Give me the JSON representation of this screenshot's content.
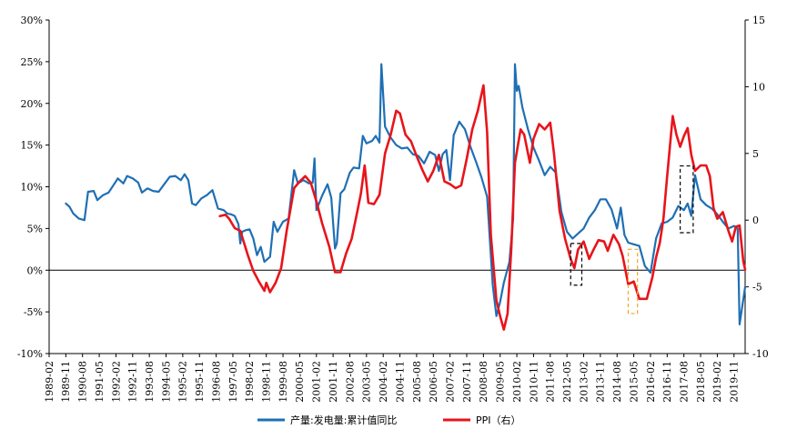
{
  "chart_data": {
    "type": "line",
    "title": "",
    "x_start": "1989-02",
    "x_end": "2020-05",
    "x_ticks": [
      "1989-02",
      "1989-11",
      "1990-08",
      "1991-05",
      "1992-02",
      "1992-11",
      "1993-08",
      "1994-05",
      "1995-02",
      "1995-11",
      "1996-08",
      "1997-05",
      "1998-02",
      "1998-11",
      "1999-08",
      "2000-05",
      "2001-02",
      "2001-11",
      "2002-08",
      "2003-05",
      "2004-02",
      "2004-11",
      "2005-08",
      "2006-05",
      "2007-02",
      "2007-11",
      "2008-08",
      "2009-05",
      "2010-02",
      "2010-11",
      "2011-08",
      "2012-05",
      "2013-02",
      "2013-11",
      "2014-08",
      "2015-05",
      "2016-02",
      "2016-11",
      "2017-08",
      "2018-05",
      "2019-02",
      "2019-11"
    ],
    "y_left": {
      "ticks": [
        "30%",
        "25%",
        "20%",
        "15%",
        "10%",
        "5%",
        "0%",
        "-5%",
        "-10%"
      ],
      "range": [
        -10,
        30
      ]
    },
    "y_right": {
      "ticks": [
        "15",
        "10",
        "5",
        "0",
        "-5",
        "-10"
      ],
      "range": [
        -10,
        15
      ]
    },
    "legend_position": "bottom-center",
    "grid": false,
    "series": [
      {
        "name": "产量:发电量:累计值同比",
        "axis": "left",
        "color": "#1f6fb4",
        "points": [
          [
            "1989-11",
            8.0
          ],
          [
            "1990-01",
            7.6
          ],
          [
            "1990-03",
            6.8
          ],
          [
            "1990-06",
            6.2
          ],
          [
            "1990-09",
            6.0
          ],
          [
            "1990-11",
            9.4
          ],
          [
            "1991-02",
            9.5
          ],
          [
            "1991-04",
            8.4
          ],
          [
            "1991-07",
            9.0
          ],
          [
            "1991-10",
            9.3
          ],
          [
            "1992-01",
            10.3
          ],
          [
            "1992-03",
            11.0
          ],
          [
            "1992-06",
            10.4
          ],
          [
            "1992-08",
            11.3
          ],
          [
            "1992-11",
            11.0
          ],
          [
            "1993-02",
            10.5
          ],
          [
            "1993-04",
            9.3
          ],
          [
            "1993-07",
            9.8
          ],
          [
            "1993-10",
            9.5
          ],
          [
            "1994-01",
            9.4
          ],
          [
            "1994-04",
            10.3
          ],
          [
            "1994-07",
            11.2
          ],
          [
            "1994-10",
            11.3
          ],
          [
            "1995-01",
            10.8
          ],
          [
            "1995-03",
            11.5
          ],
          [
            "1995-05",
            10.8
          ],
          [
            "1995-07",
            8.0
          ],
          [
            "1995-09",
            7.8
          ],
          [
            "1995-12",
            8.6
          ],
          [
            "1996-03",
            9.0
          ],
          [
            "1996-06",
            9.6
          ],
          [
            "1996-09",
            7.4
          ],
          [
            "1996-12",
            7.2
          ],
          [
            "1997-02",
            6.8
          ],
          [
            "1997-04",
            6.7
          ],
          [
            "1997-06",
            6.5
          ],
          [
            "1997-08",
            5.5
          ],
          [
            "1997-09",
            3.2
          ],
          [
            "1997-10",
            4.6
          ],
          [
            "1997-12",
            4.8
          ],
          [
            "1998-02",
            4.9
          ],
          [
            "1998-04",
            3.8
          ],
          [
            "1998-06",
            1.8
          ],
          [
            "1998-08",
            2.8
          ],
          [
            "1998-10",
            1.0
          ],
          [
            "1999-01",
            1.6
          ],
          [
            "1999-03",
            5.8
          ],
          [
            "1999-05",
            4.6
          ],
          [
            "1999-08",
            5.8
          ],
          [
            "1999-11",
            6.2
          ],
          [
            "2000-02",
            12.0
          ],
          [
            "2000-04",
            10.4
          ],
          [
            "2000-07",
            10.8
          ],
          [
            "2000-10",
            10.4
          ],
          [
            "2000-12",
            10.5
          ],
          [
            "2001-01",
            13.4
          ],
          [
            "2001-02",
            7.2
          ],
          [
            "2001-05",
            8.9
          ],
          [
            "2001-08",
            10.3
          ],
          [
            "2001-10",
            8.7
          ],
          [
            "2001-12",
            2.6
          ],
          [
            "2002-01",
            3.2
          ],
          [
            "2002-03",
            9.2
          ],
          [
            "2002-05",
            9.7
          ],
          [
            "2002-08",
            11.7
          ],
          [
            "2002-10",
            12.3
          ],
          [
            "2003-01",
            12.2
          ],
          [
            "2003-03",
            16.1
          ],
          [
            "2003-05",
            15.2
          ],
          [
            "2003-08",
            15.5
          ],
          [
            "2003-10",
            16.1
          ],
          [
            "2003-12",
            15.3
          ],
          [
            "2004-01",
            24.7
          ],
          [
            "2004-03",
            17.2
          ],
          [
            "2004-06",
            15.9
          ],
          [
            "2004-09",
            15.0
          ],
          [
            "2004-12",
            14.6
          ],
          [
            "2005-03",
            14.7
          ],
          [
            "2005-06",
            13.9
          ],
          [
            "2005-09",
            13.7
          ],
          [
            "2005-12",
            12.8
          ],
          [
            "2006-03",
            14.2
          ],
          [
            "2006-06",
            13.8
          ],
          [
            "2006-08",
            11.9
          ],
          [
            "2006-10",
            13.9
          ],
          [
            "2006-12",
            14.4
          ],
          [
            "2007-02",
            10.8
          ],
          [
            "2007-04",
            16.2
          ],
          [
            "2007-07",
            17.8
          ],
          [
            "2007-10",
            16.9
          ],
          [
            "2008-01",
            14.8
          ],
          [
            "2008-04",
            13.0
          ],
          [
            "2008-07",
            11.1
          ],
          [
            "2008-10",
            8.8
          ],
          [
            "2009-01",
            -1.8
          ],
          [
            "2009-03",
            -5.5
          ],
          [
            "2009-05",
            -3.8
          ],
          [
            "2009-07",
            -1.5
          ],
          [
            "2009-10",
            1.0
          ],
          [
            "2009-12",
            6.2
          ],
          [
            "2010-01",
            24.7
          ],
          [
            "2010-02",
            21.5
          ],
          [
            "2010-03",
            22.1
          ],
          [
            "2010-05",
            19.5
          ],
          [
            "2010-08",
            16.9
          ],
          [
            "2010-11",
            14.7
          ],
          [
            "2011-02",
            13.1
          ],
          [
            "2011-05",
            11.4
          ],
          [
            "2011-08",
            12.4
          ],
          [
            "2011-11",
            11.7
          ],
          [
            "2012-02",
            7.0
          ],
          [
            "2012-05",
            4.6
          ],
          [
            "2012-08",
            3.8
          ],
          [
            "2012-11",
            4.4
          ],
          [
            "2013-02",
            5.0
          ],
          [
            "2013-05",
            6.3
          ],
          [
            "2013-08",
            7.2
          ],
          [
            "2013-11",
            8.5
          ],
          [
            "2014-02",
            8.5
          ],
          [
            "2014-05",
            7.3
          ],
          [
            "2014-08",
            5.0
          ],
          [
            "2014-10",
            7.5
          ],
          [
            "2014-12",
            4.2
          ],
          [
            "2015-02",
            3.3
          ],
          [
            "2015-05",
            3.1
          ],
          [
            "2015-08",
            2.9
          ],
          [
            "2015-11",
            0.5
          ],
          [
            "2016-02",
            -0.3
          ],
          [
            "2016-05",
            3.8
          ],
          [
            "2016-08",
            5.6
          ],
          [
            "2016-11",
            5.8
          ],
          [
            "2017-02",
            6.3
          ],
          [
            "2017-05",
            7.7
          ],
          [
            "2017-08",
            7.2
          ],
          [
            "2017-10",
            8.0
          ],
          [
            "2017-12",
            6.5
          ],
          [
            "2018-02",
            11.4
          ],
          [
            "2018-05",
            8.5
          ],
          [
            "2018-08",
            7.8
          ],
          [
            "2018-11",
            7.4
          ],
          [
            "2019-02",
            6.7
          ],
          [
            "2019-05",
            5.8
          ],
          [
            "2019-08",
            5.0
          ],
          [
            "2019-11",
            5.3
          ],
          [
            "2020-01",
            5.0
          ],
          [
            "2020-02",
            -6.5
          ],
          [
            "2020-05",
            -2.0
          ]
        ]
      },
      {
        "name": "PPI（右）",
        "axis": "right",
        "color": "#e8141b",
        "points": [
          [
            "1996-10",
            0.3
          ],
          [
            "1997-01",
            0.4
          ],
          [
            "1997-03",
            0.1
          ],
          [
            "1997-06",
            -0.6
          ],
          [
            "1997-09",
            -0.8
          ],
          [
            "1998-01",
            -2.6
          ],
          [
            "1998-04",
            -3.8
          ],
          [
            "1998-07",
            -4.6
          ],
          [
            "1998-10",
            -5.3
          ],
          [
            "1998-11",
            -4.7
          ],
          [
            "1999-01",
            -5.4
          ],
          [
            "1999-04",
            -4.7
          ],
          [
            "1999-07",
            -3.6
          ],
          [
            "1999-10",
            -0.8
          ],
          [
            "2000-02",
            2.4
          ],
          [
            "2000-05",
            2.9
          ],
          [
            "2000-08",
            3.3
          ],
          [
            "2000-11",
            2.8
          ],
          [
            "2001-02",
            1.4
          ],
          [
            "2001-05",
            -0.2
          ],
          [
            "2001-09",
            -2.0
          ],
          [
            "2001-12",
            -3.9
          ],
          [
            "2002-03",
            -3.9
          ],
          [
            "2002-06",
            -2.5
          ],
          [
            "2002-09",
            -1.4
          ],
          [
            "2002-12",
            0.6
          ],
          [
            "2003-02",
            2.0
          ],
          [
            "2003-04",
            4.1
          ],
          [
            "2003-06",
            1.3
          ],
          [
            "2003-09",
            1.2
          ],
          [
            "2003-12",
            1.9
          ],
          [
            "2004-03",
            5.0
          ],
          [
            "2004-06",
            6.4
          ],
          [
            "2004-09",
            8.2
          ],
          [
            "2004-11",
            8.0
          ],
          [
            "2005-02",
            6.4
          ],
          [
            "2005-05",
            5.9
          ],
          [
            "2005-08",
            4.8
          ],
          [
            "2005-11",
            3.8
          ],
          [
            "2006-02",
            2.9
          ],
          [
            "2006-05",
            3.7
          ],
          [
            "2006-08",
            4.9
          ],
          [
            "2006-11",
            2.9
          ],
          [
            "2007-02",
            2.7
          ],
          [
            "2007-05",
            2.4
          ],
          [
            "2007-08",
            2.6
          ],
          [
            "2007-11",
            4.6
          ],
          [
            "2008-02",
            6.8
          ],
          [
            "2008-05",
            8.2
          ],
          [
            "2008-08",
            10.1
          ],
          [
            "2008-10",
            6.6
          ],
          [
            "2008-12",
            -1.1
          ],
          [
            "2009-03",
            -6.0
          ],
          [
            "2009-05",
            -7.2
          ],
          [
            "2009-07",
            -8.2
          ],
          [
            "2009-09",
            -7.0
          ],
          [
            "2009-11",
            -2.1
          ],
          [
            "2010-01",
            4.3
          ],
          [
            "2010-04",
            6.8
          ],
          [
            "2010-06",
            6.4
          ],
          [
            "2010-09",
            4.3
          ],
          [
            "2010-11",
            6.1
          ],
          [
            "2011-02",
            7.2
          ],
          [
            "2011-05",
            6.8
          ],
          [
            "2011-08",
            7.3
          ],
          [
            "2011-10",
            5.0
          ],
          [
            "2012-01",
            0.7
          ],
          [
            "2012-04",
            -1.4
          ],
          [
            "2012-07",
            -2.9
          ],
          [
            "2012-09",
            -3.6
          ],
          [
            "2012-11",
            -2.2
          ],
          [
            "2013-02",
            -1.6
          ],
          [
            "2013-05",
            -2.9
          ],
          [
            "2013-07",
            -2.3
          ],
          [
            "2013-10",
            -1.5
          ],
          [
            "2014-01",
            -1.6
          ],
          [
            "2014-03",
            -2.3
          ],
          [
            "2014-06",
            -1.1
          ],
          [
            "2014-09",
            -1.8
          ],
          [
            "2014-11",
            -2.7
          ],
          [
            "2015-02",
            -4.8
          ],
          [
            "2015-05",
            -4.6
          ],
          [
            "2015-08",
            -5.9
          ],
          [
            "2015-10",
            -5.9
          ],
          [
            "2015-12",
            -5.9
          ],
          [
            "2016-03",
            -4.3
          ],
          [
            "2016-05",
            -2.8
          ],
          [
            "2016-07",
            -1.7
          ],
          [
            "2016-09",
            0.1
          ],
          [
            "2016-11",
            3.3
          ],
          [
            "2017-02",
            7.8
          ],
          [
            "2017-04",
            6.4
          ],
          [
            "2017-06",
            5.5
          ],
          [
            "2017-08",
            6.3
          ],
          [
            "2017-10",
            6.9
          ],
          [
            "2017-12",
            4.9
          ],
          [
            "2018-02",
            3.7
          ],
          [
            "2018-05",
            4.1
          ],
          [
            "2018-08",
            4.1
          ],
          [
            "2018-10",
            3.3
          ],
          [
            "2018-12",
            0.9
          ],
          [
            "2019-02",
            0.1
          ],
          [
            "2019-05",
            0.6
          ],
          [
            "2019-08",
            -0.8
          ],
          [
            "2019-10",
            -1.6
          ],
          [
            "2019-12",
            -0.5
          ],
          [
            "2020-02",
            -0.4
          ],
          [
            "2020-04",
            -3.1
          ],
          [
            "2020-05",
            -3.7
          ]
        ]
      }
    ]
  },
  "annotations": [
    {
      "name": "box-2012",
      "color": "#000000",
      "from": [
        "2012-07",
        3.2
      ],
      "to": [
        "2013-01",
        -1.8
      ]
    },
    {
      "name": "box-2014",
      "color": "#f5a623",
      "from": [
        "2015-02",
        2.5
      ],
      "to": [
        "2015-07",
        -5.2
      ]
    },
    {
      "name": "box-2017",
      "color": "#000000",
      "from": [
        "2017-06",
        12.5
      ],
      "to": [
        "2018-01",
        4.5
      ]
    }
  ]
}
